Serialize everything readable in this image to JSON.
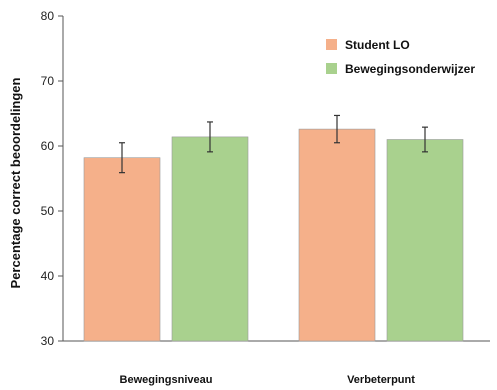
{
  "chart_data": {
    "type": "bar",
    "ylabel": "Percentage correct beoordelingen",
    "xlabel": "",
    "ylim": [
      30,
      80
    ],
    "yticks": [
      30,
      40,
      50,
      60,
      70,
      80
    ],
    "categories": [
      "Bewegingsniveau",
      "Verbeterpunt"
    ],
    "series": [
      {
        "name": "Student LO",
        "color": "#f5b08a",
        "values": [
          58.2,
          62.6
        ],
        "errors": [
          2.3,
          2.1
        ]
      },
      {
        "name": "Bewegingsonderwijzer",
        "color": "#a9d18e",
        "values": [
          61.4,
          61.0
        ],
        "errors": [
          2.3,
          1.9
        ]
      }
    ],
    "legend_position": "top-right",
    "grid": false
  }
}
